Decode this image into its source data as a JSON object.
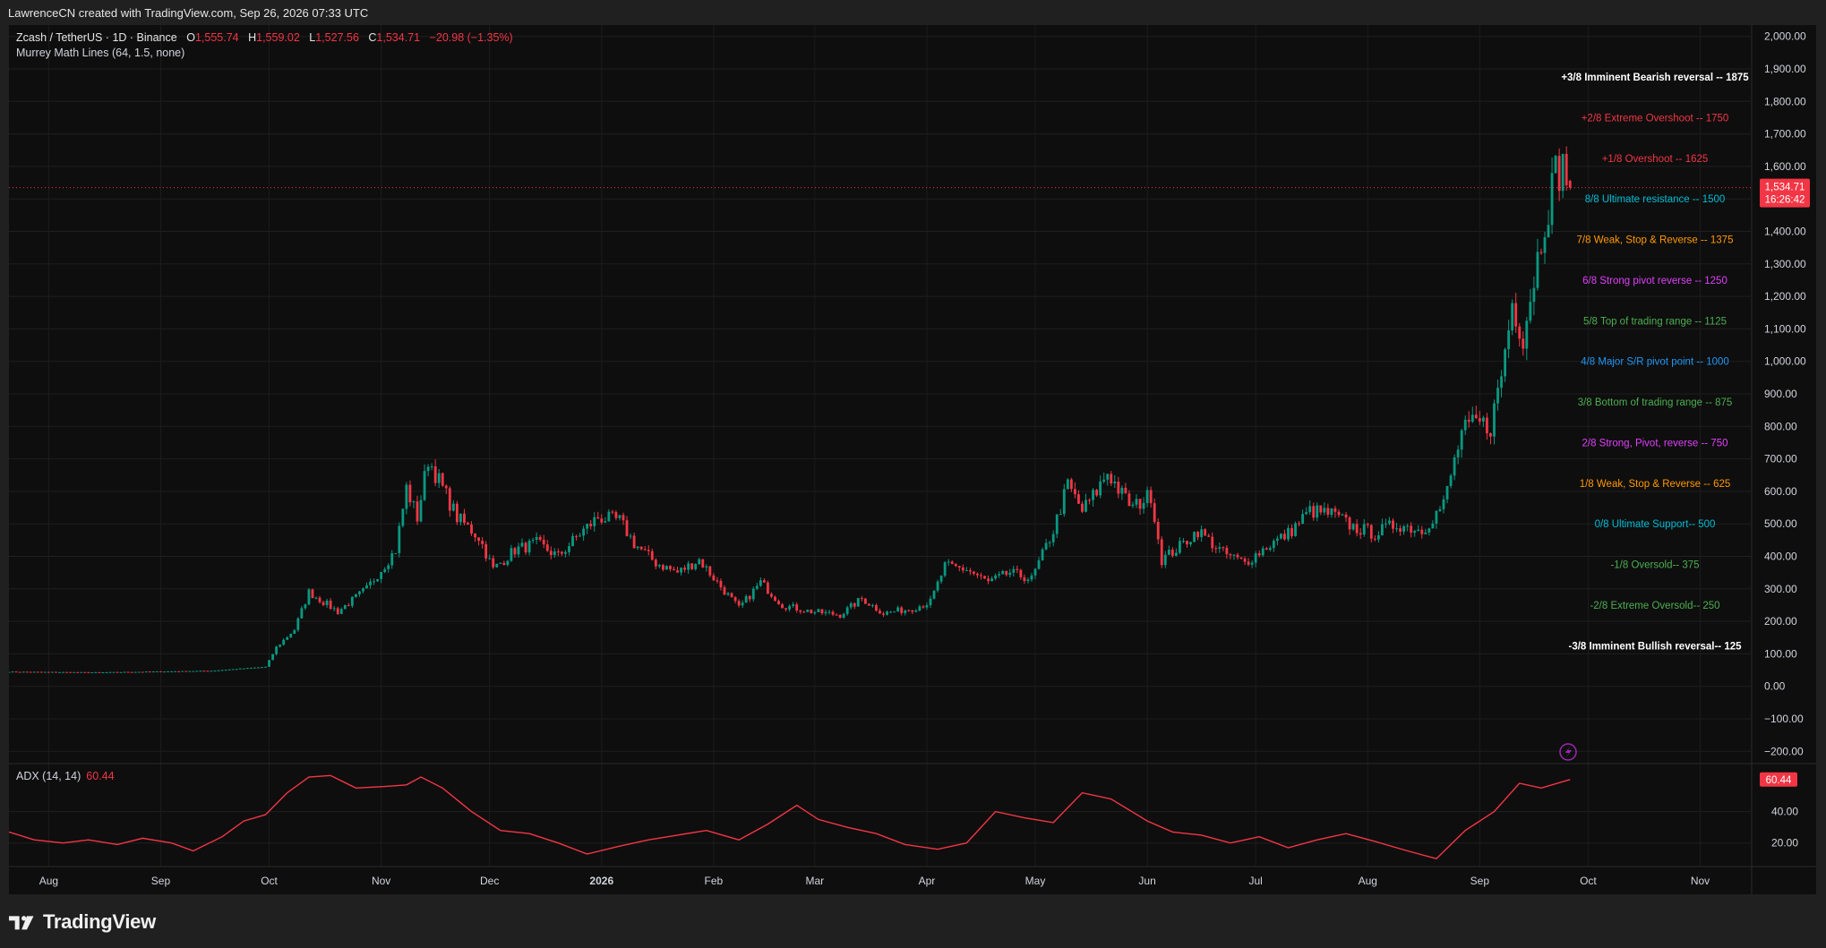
{
  "credit": "LawrenceCN created with TradingView.com, Sep 26, 2026 07:33 UTC",
  "legend": {
    "symbol": "Zcash / TetherUS · 1D · Binance",
    "o_label": "O",
    "o": "1,555.74",
    "h_label": "H",
    "h": "1,559.02",
    "l_label": "L",
    "l": "1,527.56",
    "c_label": "C",
    "c": "1,534.71",
    "change": "−20.98 (−1.35%)",
    "indicator": "Murrey Math Lines (64, 1.5, none)"
  },
  "adx": {
    "name": "ADX (14, 14)",
    "value": "60.44",
    "badge": "60.44"
  },
  "price_badge": {
    "price": "1,534.71",
    "countdown": "16:26:42"
  },
  "footer": {
    "brand": "TradingView"
  },
  "colors": {
    "bull": "#089981",
    "bear": "#f23645",
    "adx": "#f23645",
    "background": "#0e0e0e"
  },
  "chart_data": [
    {
      "type": "candlestick",
      "title": "Zcash / TetherUS · 1D · Binance",
      "y_axis": {
        "ticks": [
          2000,
          1900,
          1800,
          1700,
          1600,
          1500,
          1400,
          1300,
          1200,
          1100,
          1000,
          900,
          800,
          700,
          600,
          500,
          400,
          300,
          200,
          100,
          0,
          -100,
          -200
        ],
        "labels": [
          "2,000.00",
          "1,900.00",
          "1,800.00",
          "1,700.00",
          "1,600.00",
          "1,500.00",
          "1,400.00",
          "1,300.00",
          "1,200.00",
          "1,100.00",
          "1,000.00",
          "900.00",
          "800.00",
          "700.00",
          "600.00",
          "500.00",
          "400.00",
          "300.00",
          "200.00",
          "100.00",
          "0.00",
          "−100.00",
          "−200.00"
        ],
        "range": [
          -235,
          2035
        ]
      },
      "x_axis": {
        "labels": [
          "Aug",
          "Sep",
          "Oct",
          "Nov",
          "Dec",
          "2026",
          "Feb",
          "Mar",
          "Apr",
          "May",
          "Jun",
          "Jul",
          "Aug",
          "Sep",
          "Oct",
          "Nov"
        ],
        "month_start_dates": [
          "2025-08-01",
          "2025-09-01",
          "2025-10-01",
          "2025-11-01",
          "2025-12-01",
          "2026-01-01",
          "2026-02-01",
          "2026-03-01",
          "2026-04-01",
          "2026-05-01",
          "2026-06-01",
          "2026-07-01",
          "2026-08-01",
          "2026-09-01",
          "2026-10-01",
          "2026-11-01"
        ],
        "range": [
          "2025-07-21",
          "2026-11-15"
        ]
      },
      "close_path": [
        [
          "2025-07-21",
          45
        ],
        [
          "2025-08-15",
          43
        ],
        [
          "2025-09-15",
          48
        ],
        [
          "2025-09-30",
          60
        ],
        [
          "2025-10-03",
          120
        ],
        [
          "2025-10-08",
          175
        ],
        [
          "2025-10-12",
          290
        ],
        [
          "2025-10-20",
          230
        ],
        [
          "2025-10-28",
          300
        ],
        [
          "2025-11-05",
          420
        ],
        [
          "2025-11-08",
          610
        ],
        [
          "2025-11-11",
          520
        ],
        [
          "2025-11-14",
          700
        ],
        [
          "2025-11-18",
          610
        ],
        [
          "2025-11-22",
          520
        ],
        [
          "2025-11-28",
          460
        ],
        [
          "2025-12-02",
          360
        ],
        [
          "2025-12-08",
          420
        ],
        [
          "2025-12-14",
          440
        ],
        [
          "2025-12-20",
          400
        ],
        [
          "2025-12-26",
          470
        ],
        [
          "2025-12-31",
          520
        ],
        [
          "2026-01-06",
          510
        ],
        [
          "2026-01-10",
          440
        ],
        [
          "2026-01-16",
          380
        ],
        [
          "2026-01-22",
          350
        ],
        [
          "2026-01-28",
          390
        ],
        [
          "2026-02-02",
          320
        ],
        [
          "2026-02-08",
          240
        ],
        [
          "2026-02-14",
          320
        ],
        [
          "2026-02-20",
          250
        ],
        [
          "2026-02-28",
          230
        ],
        [
          "2026-03-08",
          220
        ],
        [
          "2026-03-14",
          270
        ],
        [
          "2026-03-20",
          225
        ],
        [
          "2026-03-28",
          240
        ],
        [
          "2026-04-02",
          260
        ],
        [
          "2026-04-06",
          370
        ],
        [
          "2026-04-12",
          360
        ],
        [
          "2026-04-18",
          320
        ],
        [
          "2026-04-24",
          350
        ],
        [
          "2026-04-30",
          330
        ],
        [
          "2026-05-06",
          480
        ],
        [
          "2026-05-10",
          620
        ],
        [
          "2026-05-14",
          540
        ],
        [
          "2026-05-18",
          600
        ],
        [
          "2026-05-21",
          660
        ],
        [
          "2026-05-25",
          590
        ],
        [
          "2026-05-28",
          550
        ],
        [
          "2026-06-02",
          590
        ],
        [
          "2026-06-05",
          390
        ],
        [
          "2026-06-10",
          430
        ],
        [
          "2026-06-15",
          480
        ],
        [
          "2026-06-22",
          410
        ],
        [
          "2026-06-28",
          380
        ],
        [
          "2026-07-04",
          430
        ],
        [
          "2026-07-10",
          470
        ],
        [
          "2026-07-16",
          540
        ],
        [
          "2026-07-22",
          530
        ],
        [
          "2026-07-28",
          490
        ],
        [
          "2026-08-03",
          470
        ],
        [
          "2026-08-09",
          500
        ],
        [
          "2026-08-16",
          480
        ],
        [
          "2026-08-22",
          560
        ],
        [
          "2026-08-27",
          780
        ],
        [
          "2026-08-31",
          810
        ],
        [
          "2026-09-04",
          800
        ],
        [
          "2026-09-07",
          960
        ],
        [
          "2026-09-10",
          1180
        ],
        [
          "2026-09-13",
          1080
        ],
        [
          "2026-09-16",
          1260
        ],
        [
          "2026-09-19",
          1440
        ],
        [
          "2026-09-22",
          1580
        ],
        [
          "2026-09-24",
          1600
        ],
        [
          "2026-09-26",
          1534.71
        ]
      ],
      "last": {
        "date": "2026-09-26",
        "open": 1555.74,
        "high": 1559.02,
        "low": 1527.56,
        "close": 1534.71
      },
      "murrey_lines": [
        {
          "label": "+3/8 Imminent Bearish reversal --  1875",
          "level": 1875,
          "color": "#ffffff"
        },
        {
          "label": "+2/8 Extreme Overshoot --  1750",
          "level": 1750,
          "color": "#f23645"
        },
        {
          "label": "+1/8 Overshoot --  1625",
          "level": 1625,
          "color": "#f23645"
        },
        {
          "label": "8/8 Ultimate resistance --  1500",
          "level": 1500,
          "color": "#00bcd4"
        },
        {
          "label": "7/8 Weak, Stop & Reverse --  1375",
          "level": 1375,
          "color": "#ff9800"
        },
        {
          "label": "6/8 Strong pivot reverse --  1250",
          "level": 1250,
          "color": "#e040fb"
        },
        {
          "label": "5/8 Top of trading range --  1125",
          "level": 1125,
          "color": "#4caf50"
        },
        {
          "label": "4/8 Major S/R pivot point --  1000",
          "level": 1000,
          "color": "#2196f3"
        },
        {
          "label": "3/8 Bottom of trading range --  875",
          "level": 875,
          "color": "#4caf50"
        },
        {
          "label": "2/8 Strong, Pivot, reverse --  750",
          "level": 750,
          "color": "#e040fb"
        },
        {
          "label": "1/8 Weak, Stop & Reverse --  625",
          "level": 625,
          "color": "#ff9800"
        },
        {
          "label": "0/8 Ultimate Support--  500",
          "level": 500,
          "color": "#00bcd4"
        },
        {
          "label": "-1/8 Oversold--  375",
          "level": 375,
          "color": "#4caf50"
        },
        {
          "label": "-2/8 Extreme Oversold--  250",
          "level": 250,
          "color": "#4caf50"
        },
        {
          "label": "-3/8 Imminent Bullish reversal--  125",
          "level": 125,
          "color": "#ffffff"
        }
      ]
    },
    {
      "type": "line",
      "title": "ADX (14, 14)",
      "y_axis": {
        "ticks": [
          40,
          20
        ],
        "labels": [
          "40.00",
          "20.00"
        ],
        "range": [
          5,
          70
        ]
      },
      "series": [
        {
          "name": "ADX (14, 14)",
          "points": [
            [
              "2025-07-21",
              27
            ],
            [
              "2025-07-28",
              22
            ],
            [
              "2025-08-05",
              20
            ],
            [
              "2025-08-12",
              22
            ],
            [
              "2025-08-20",
              19
            ],
            [
              "2025-08-27",
              23
            ],
            [
              "2025-09-04",
              20
            ],
            [
              "2025-09-10",
              15
            ],
            [
              "2025-09-18",
              24
            ],
            [
              "2025-09-24",
              34
            ],
            [
              "2025-09-30",
              38
            ],
            [
              "2025-10-06",
              52
            ],
            [
              "2025-10-12",
              62
            ],
            [
              "2025-10-18",
              63
            ],
            [
              "2025-10-25",
              55
            ],
            [
              "2025-11-02",
              56
            ],
            [
              "2025-11-08",
              57
            ],
            [
              "2025-11-12",
              62
            ],
            [
              "2025-11-18",
              55
            ],
            [
              "2025-11-26",
              40
            ],
            [
              "2025-12-04",
              28
            ],
            [
              "2025-12-12",
              26
            ],
            [
              "2025-12-20",
              20
            ],
            [
              "2025-12-28",
              13
            ],
            [
              "2026-01-06",
              18
            ],
            [
              "2026-01-14",
              22
            ],
            [
              "2026-01-22",
              25
            ],
            [
              "2026-01-30",
              28
            ],
            [
              "2026-02-08",
              22
            ],
            [
              "2026-02-16",
              32
            ],
            [
              "2026-02-24",
              44
            ],
            [
              "2026-03-02",
              35
            ],
            [
              "2026-03-10",
              30
            ],
            [
              "2026-03-18",
              26
            ],
            [
              "2026-03-26",
              19
            ],
            [
              "2026-04-04",
              16
            ],
            [
              "2026-04-12",
              20
            ],
            [
              "2026-04-20",
              40
            ],
            [
              "2026-04-28",
              36
            ],
            [
              "2026-05-06",
              33
            ],
            [
              "2026-05-14",
              52
            ],
            [
              "2026-05-22",
              48
            ],
            [
              "2026-06-01",
              34
            ],
            [
              "2026-06-08",
              27
            ],
            [
              "2026-06-16",
              25
            ],
            [
              "2026-06-24",
              20
            ],
            [
              "2026-07-02",
              24
            ],
            [
              "2026-07-10",
              17
            ],
            [
              "2026-07-18",
              22
            ],
            [
              "2026-07-26",
              26
            ],
            [
              "2026-08-03",
              21
            ],
            [
              "2026-08-12",
              15
            ],
            [
              "2026-08-20",
              10
            ],
            [
              "2026-08-28",
              28
            ],
            [
              "2026-09-05",
              40
            ],
            [
              "2026-09-12",
              58
            ],
            [
              "2026-09-18",
              55
            ],
            [
              "2026-09-26",
              60.44
            ]
          ]
        }
      ]
    }
  ]
}
